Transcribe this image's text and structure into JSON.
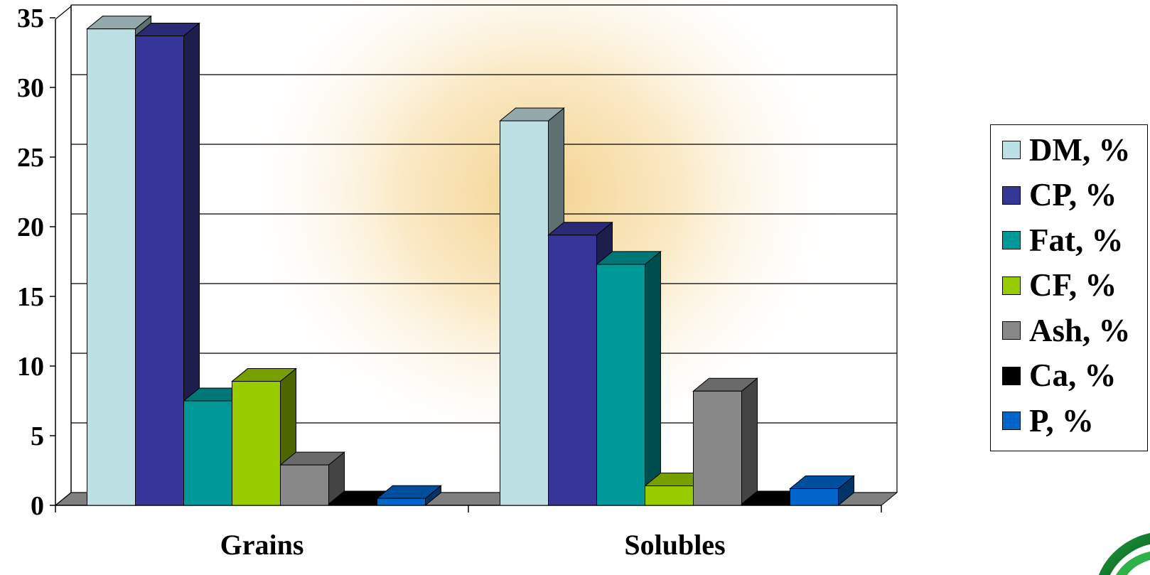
{
  "chart_data": {
    "type": "bar",
    "title": "",
    "xlabel": "",
    "ylabel": "",
    "categories": [
      "Grains",
      "Solubles"
    ],
    "ylim": [
      0,
      35
    ],
    "yticks": [
      "0",
      "5",
      "10",
      "15",
      "20",
      "25",
      "30",
      "35"
    ],
    "grid": true,
    "legend_position": "right",
    "series": [
      {
        "name": "DM, %",
        "values": [
          34.2,
          27.6
        ],
        "color": "#bde0e4",
        "side": "#5f7072",
        "top": "#93a9ac"
      },
      {
        "name": "CP, %",
        "values": [
          33.7,
          19.4
        ],
        "color": "#363699",
        "side": "#1e1e4d",
        "top": "#2a2a77"
      },
      {
        "name": "Fat, %",
        "values": [
          7.5,
          17.3
        ],
        "color": "#009999",
        "side": "#004d4d",
        "top": "#007777"
      },
      {
        "name": "CF, %",
        "values": [
          8.9,
          1.4
        ],
        "color": "#99cc00",
        "side": "#4d6600",
        "top": "#779f00"
      },
      {
        "name": "Ash, %",
        "values": [
          2.9,
          8.2
        ],
        "color": "#888888",
        "side": "#444444",
        "top": "#6a6a6a"
      },
      {
        "name": "Ca, %",
        "values": [
          0.1,
          0.1
        ],
        "color": "#000000",
        "side": "#000000",
        "top": "#000000"
      },
      {
        "name": "P, %",
        "values": [
          0.5,
          1.2
        ],
        "color": "#0066cc",
        "side": "#003366",
        "top": "#004f9f"
      }
    ]
  }
}
